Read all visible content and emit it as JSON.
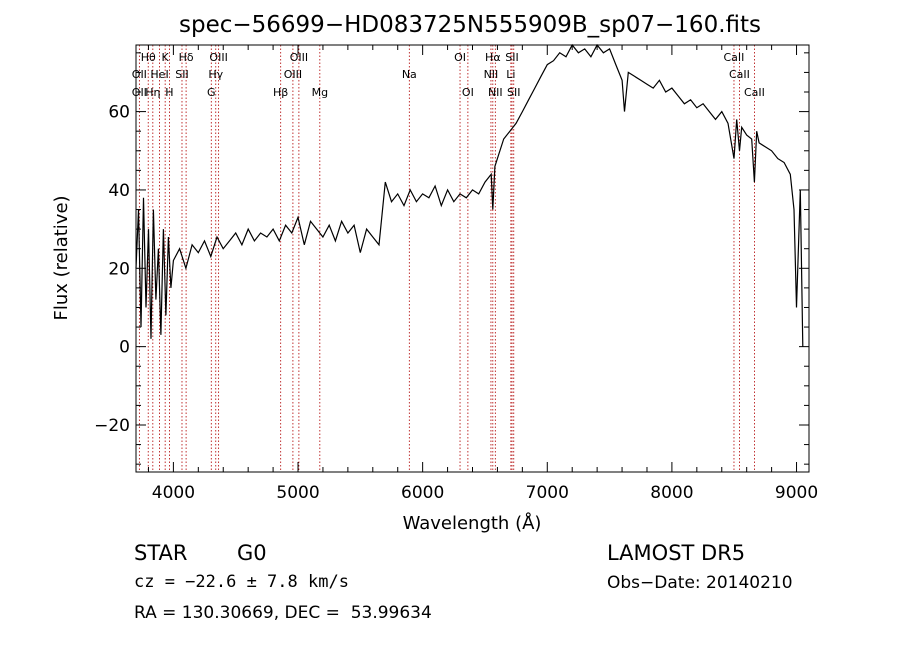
{
  "chart_data": {
    "type": "line",
    "title": "spec−56699−HD083725N555909B_sp07−160.fits",
    "xlabel": "Wavelength (Å)",
    "ylabel": "Flux (relative)",
    "xlim": [
      3700,
      9100
    ],
    "ylim": [
      -32,
      77
    ],
    "xticks": [
      4000,
      5000,
      6000,
      7000,
      8000,
      9000
    ],
    "yticks": [
      -20,
      0,
      20,
      40,
      60
    ],
    "grid": false,
    "series": [
      {
        "x": [
          3700,
          3720,
          3740,
          3760,
          3780,
          3800,
          3820,
          3840,
          3860,
          3880,
          3900,
          3920,
          3940,
          3960,
          3980,
          4000,
          4050,
          4100,
          4150,
          4200,
          4250,
          4300,
          4350,
          4400,
          4450,
          4500,
          4550,
          4600,
          4650,
          4700,
          4750,
          4800,
          4850,
          4900,
          4950,
          5000,
          5050,
          5100,
          5150,
          5200,
          5250,
          5300,
          5350,
          5400,
          5450,
          5500,
          5550,
          5600,
          5650,
          5700,
          5750,
          5800,
          5850,
          5900,
          5950,
          6000,
          6050,
          6100,
          6150,
          6200,
          6250,
          6300,
          6350,
          6400,
          6450,
          6500,
          6550,
          6563,
          6580,
          6600,
          6650,
          6700,
          6750,
          6800,
          6850,
          6900,
          6950,
          7000,
          7050,
          7100,
          7150,
          7200,
          7250,
          7300,
          7350,
          7400,
          7450,
          7500,
          7550,
          7600,
          7620,
          7650,
          7700,
          7750,
          7800,
          7850,
          7900,
          7950,
          8000,
          8050,
          8100,
          8150,
          8200,
          8250,
          8300,
          8350,
          8400,
          8450,
          8498,
          8520,
          8542,
          8560,
          8600,
          8640,
          8662,
          8680,
          8700,
          8750,
          8800,
          8850,
          8900,
          8950,
          8980,
          9000,
          9030,
          9050
        ],
        "y": [
          20,
          35,
          5,
          38,
          10,
          30,
          2,
          35,
          12,
          25,
          3,
          30,
          8,
          28,
          15,
          22,
          25,
          20,
          26,
          24,
          27,
          23,
          28,
          25,
          27,
          29,
          26,
          30,
          27,
          29,
          28,
          30,
          27,
          31,
          29,
          33,
          26,
          32,
          30,
          28,
          31,
          27,
          32,
          29,
          31,
          24,
          30,
          28,
          26,
          42,
          37,
          39,
          36,
          40,
          37,
          39,
          38,
          41,
          36,
          40,
          37,
          39,
          38,
          40,
          39,
          42,
          44,
          35,
          46,
          48,
          53,
          55,
          57,
          60,
          63,
          66,
          69,
          72,
          73,
          75,
          74,
          77,
          75,
          76,
          74,
          77,
          75,
          76,
          72,
          68,
          60,
          70,
          69,
          68,
          67,
          66,
          68,
          65,
          66,
          64,
          62,
          63,
          61,
          62,
          60,
          58,
          60,
          57,
          48,
          58,
          50,
          56,
          54,
          53,
          42,
          55,
          52,
          51,
          50,
          48,
          47,
          44,
          35,
          10,
          40,
          0
        ]
      }
    ],
    "line_labels": [
      {
        "text": "Hθ",
        "row": 1,
        "x": 3798
      },
      {
        "text": "K",
        "row": 1,
        "x": 3934
      },
      {
        "text": "Hδ",
        "row": 1,
        "x": 4102
      },
      {
        "text": "OIII",
        "row": 1,
        "x": 4363
      },
      {
        "text": "OIII",
        "row": 1,
        "x": 5007
      },
      {
        "text": "OI",
        "row": 1,
        "x": 6300
      },
      {
        "text": "Hα",
        "row": 1,
        "x": 6563
      },
      {
        "text": "SII",
        "row": 1,
        "x": 6717
      },
      {
        "text": "CaII",
        "row": 1,
        "x": 8498
      },
      {
        "text": "OII",
        "row": 2,
        "x": 3727
      },
      {
        "text": "HeI",
        "row": 2,
        "x": 3889
      },
      {
        "text": "SII",
        "row": 2,
        "x": 4069
      },
      {
        "text": "Hγ",
        "row": 2,
        "x": 4340
      },
      {
        "text": "OIII",
        "row": 2,
        "x": 4959
      },
      {
        "text": "Na",
        "row": 2,
        "x": 5893
      },
      {
        "text": "NII",
        "row": 2,
        "x": 6548
      },
      {
        "text": "Li",
        "row": 2,
        "x": 6708
      },
      {
        "text": "CaII",
        "row": 2,
        "x": 8542
      },
      {
        "text": "OII",
        "row": 3,
        "x": 3727
      },
      {
        "text": "Hη",
        "row": 3,
        "x": 3835
      },
      {
        "text": "H",
        "row": 3,
        "x": 3968
      },
      {
        "text": "G",
        "row": 3,
        "x": 4304
      },
      {
        "text": "Hβ",
        "row": 3,
        "x": 4861
      },
      {
        "text": "Mg",
        "row": 3,
        "x": 5175
      },
      {
        "text": "OI",
        "row": 3,
        "x": 6363
      },
      {
        "text": "NII",
        "row": 3,
        "x": 6583
      },
      {
        "text": "SII",
        "row": 3,
        "x": 6731
      },
      {
        "text": "CaII",
        "row": 3,
        "x": 8662
      }
    ],
    "line_positions": [
      3727,
      3798,
      3835,
      3889,
      3934,
      3968,
      4069,
      4102,
      4304,
      4340,
      4363,
      4861,
      4959,
      5007,
      5175,
      5893,
      6300,
      6363,
      6548,
      6563,
      6583,
      6708,
      6717,
      6731,
      8498,
      8542,
      8662
    ],
    "line_color": "#b00000"
  },
  "footer": {
    "object_class": "STAR",
    "subclass": "G0",
    "survey": "LAMOST DR5",
    "cz": "cz = −22.6 ± 7.8 km/s",
    "obs_date": "Obs−Date: 20140210",
    "coords": "RA = 130.30669, DEC =  53.99634"
  }
}
